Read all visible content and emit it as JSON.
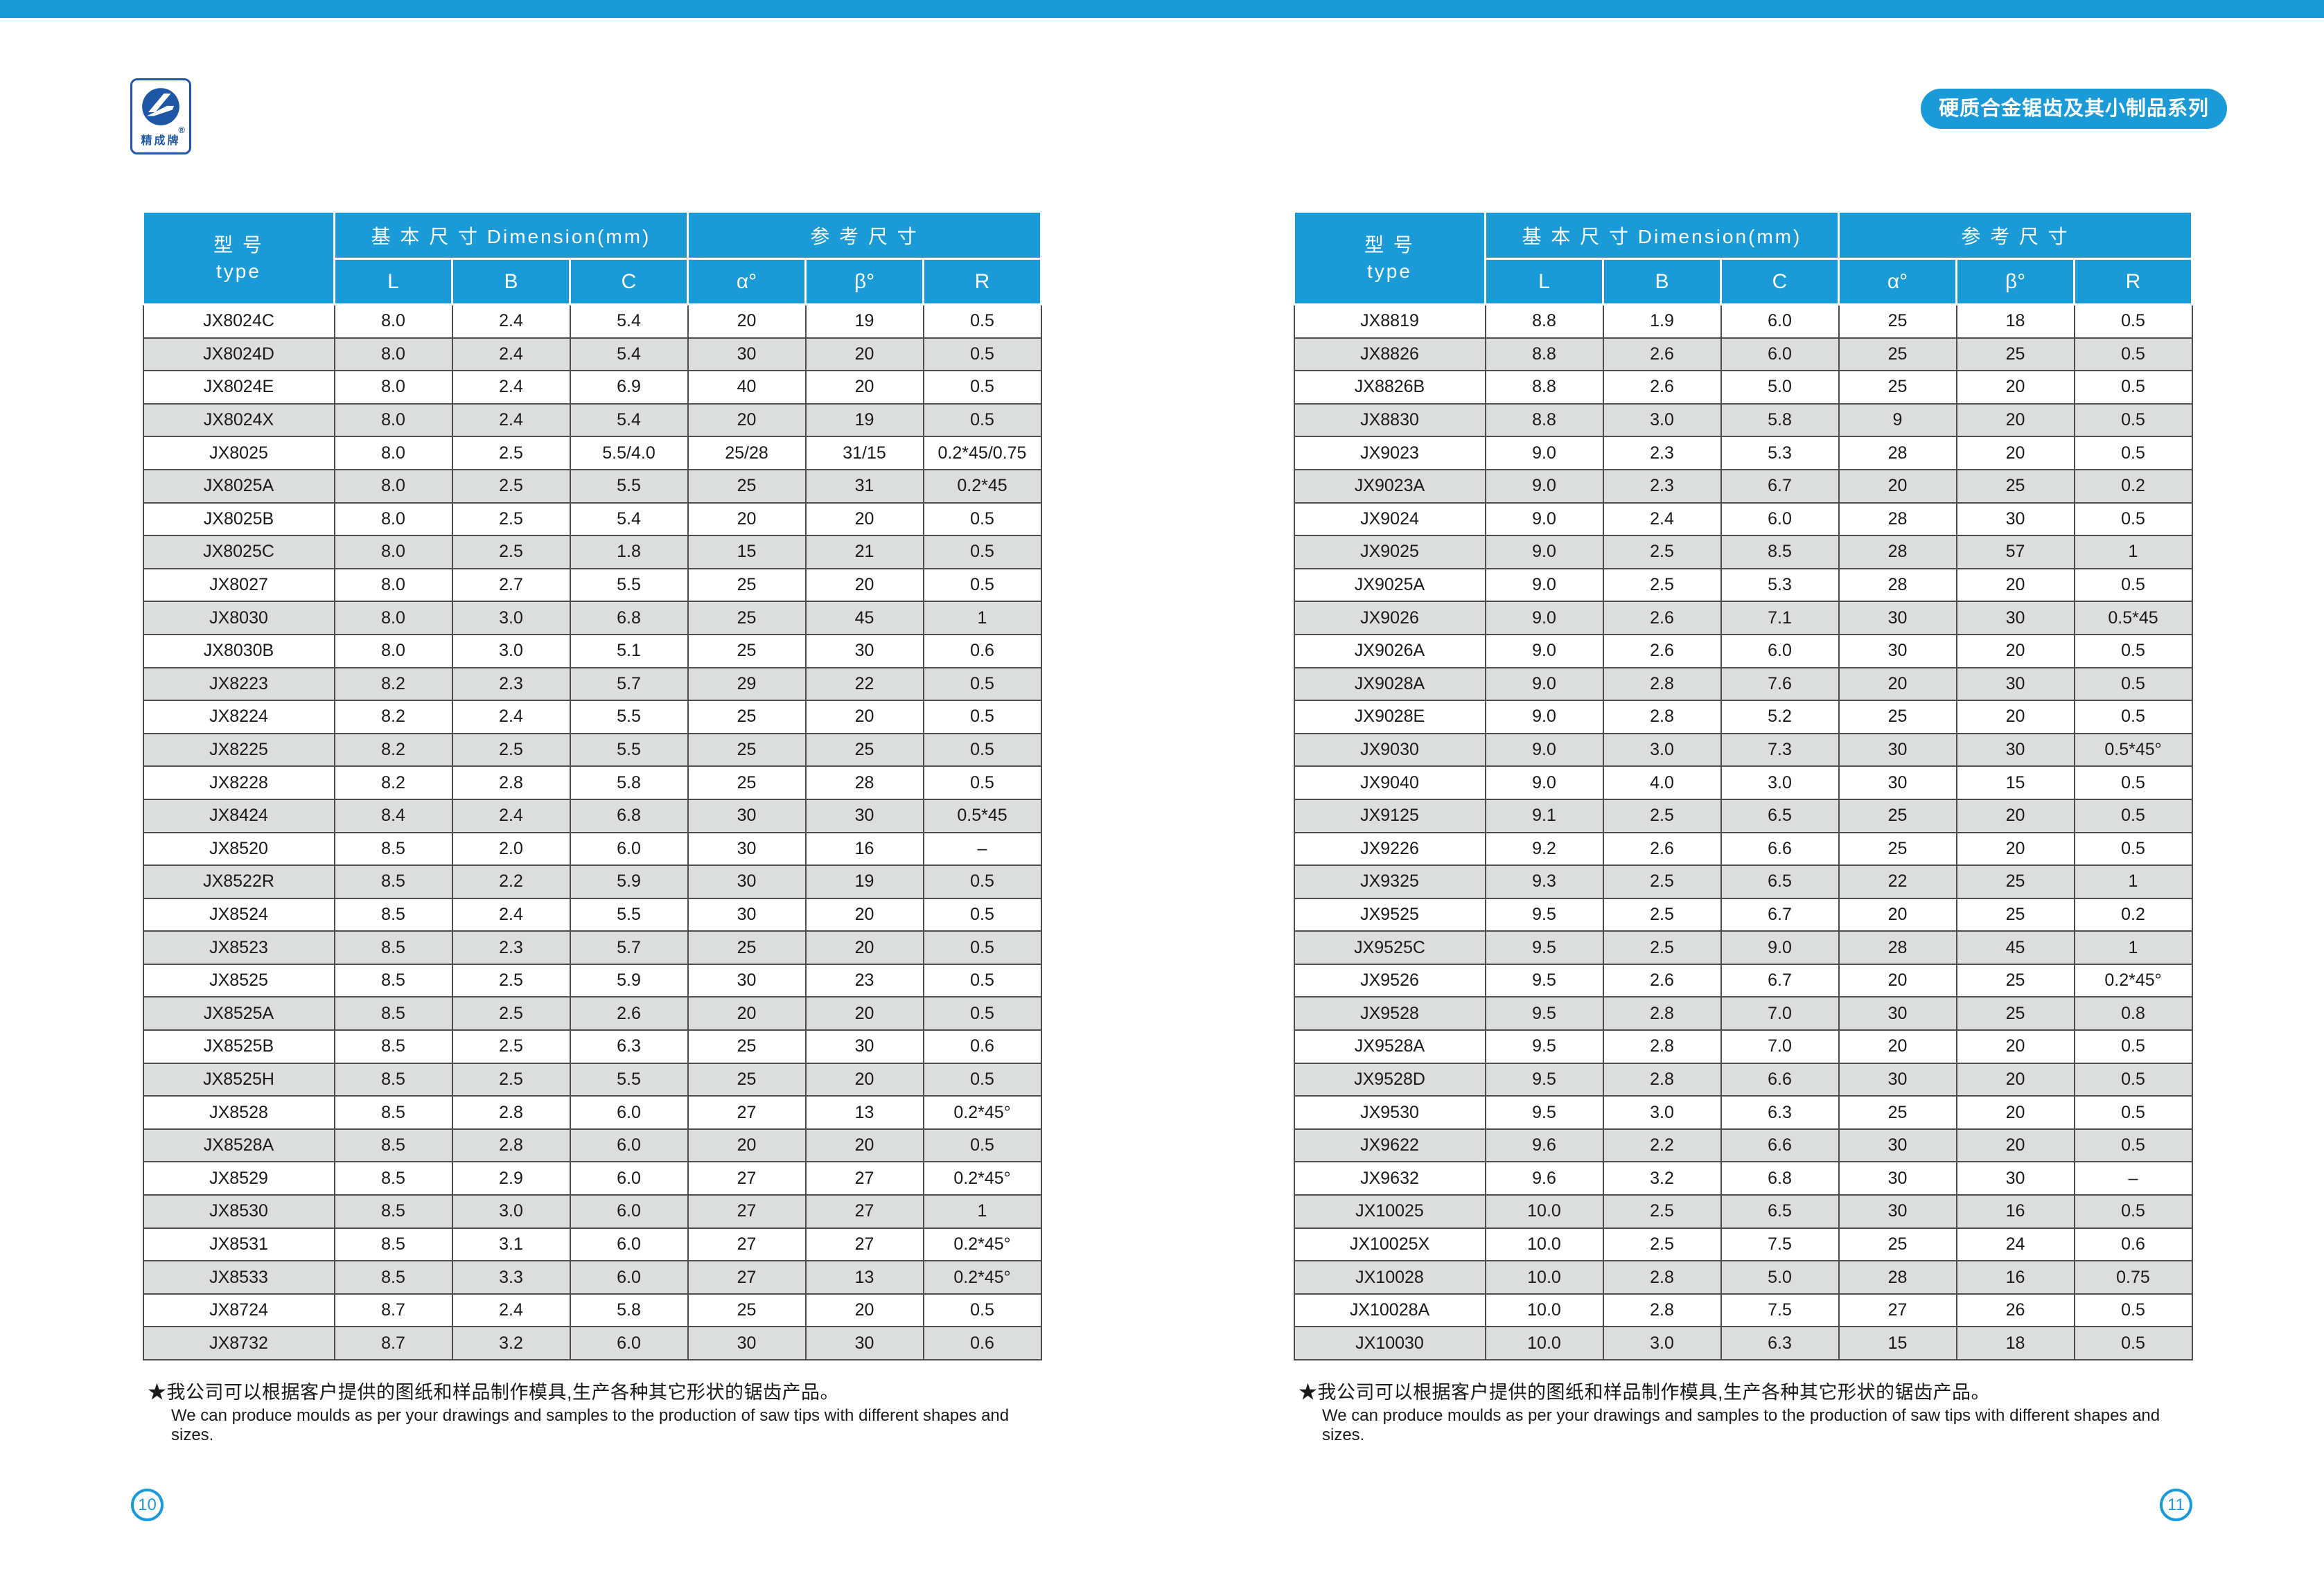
{
  "page": {
    "series_badge": "硬质合金锯齿及其小制品系列",
    "page_number_left": "10",
    "page_number_right": "11"
  },
  "logo": {
    "brand_text": "精成牌",
    "registered_mark": "®"
  },
  "colors": {
    "accent_blue": "#1a9ad6",
    "logo_blue": "#1e57a5",
    "row_alt_gray": "#dcdddd",
    "grid_line": "#4d4d4d"
  },
  "table_header": {
    "type_cn": "型  号",
    "type_en": "type",
    "basic_dim": "基 本 尺 寸 Dimension(mm)",
    "ref_dim": "参  考  尺  寸",
    "cols": [
      "L",
      "B",
      "C",
      "α°",
      "β°",
      "R"
    ]
  },
  "footnote": {
    "cn": "★我公司可以根据客户提供的图纸和样品制作模具,生产各种其它形状的锯齿产品。",
    "en": "We can produce moulds as per your drawings and samples to the production of saw tips with different shapes and sizes."
  },
  "tables": {
    "left": {
      "rows": [
        [
          "JX8024C",
          "8.0",
          "2.4",
          "5.4",
          "20",
          "19",
          "0.5"
        ],
        [
          "JX8024D",
          "8.0",
          "2.4",
          "5.4",
          "30",
          "20",
          "0.5"
        ],
        [
          "JX8024E",
          "8.0",
          "2.4",
          "6.9",
          "40",
          "20",
          "0.5"
        ],
        [
          "JX8024X",
          "8.0",
          "2.4",
          "5.4",
          "20",
          "19",
          "0.5"
        ],
        [
          "JX8025",
          "8.0",
          "2.5",
          "5.5/4.0",
          "25/28",
          "31/15",
          "0.2*45/0.75"
        ],
        [
          "JX8025A",
          "8.0",
          "2.5",
          "5.5",
          "25",
          "31",
          "0.2*45"
        ],
        [
          "JX8025B",
          "8.0",
          "2.5",
          "5.4",
          "20",
          "20",
          "0.5"
        ],
        [
          "JX8025C",
          "8.0",
          "2.5",
          "1.8",
          "15",
          "21",
          "0.5"
        ],
        [
          "JX8027",
          "8.0",
          "2.7",
          "5.5",
          "25",
          "20",
          "0.5"
        ],
        [
          "JX8030",
          "8.0",
          "3.0",
          "6.8",
          "25",
          "45",
          "1"
        ],
        [
          "JX8030B",
          "8.0",
          "3.0",
          "5.1",
          "25",
          "30",
          "0.6"
        ],
        [
          "JX8223",
          "8.2",
          "2.3",
          "5.7",
          "29",
          "22",
          "0.5"
        ],
        [
          "JX8224",
          "8.2",
          "2.4",
          "5.5",
          "25",
          "20",
          "0.5"
        ],
        [
          "JX8225",
          "8.2",
          "2.5",
          "5.5",
          "25",
          "25",
          "0.5"
        ],
        [
          "JX8228",
          "8.2",
          "2.8",
          "5.8",
          "25",
          "28",
          "0.5"
        ],
        [
          "JX8424",
          "8.4",
          "2.4",
          "6.8",
          "30",
          "30",
          "0.5*45"
        ],
        [
          "JX8520",
          "8.5",
          "2.0",
          "6.0",
          "30",
          "16",
          "–"
        ],
        [
          "JX8522R",
          "8.5",
          "2.2",
          "5.9",
          "30",
          "19",
          "0.5"
        ],
        [
          "JX8524",
          "8.5",
          "2.4",
          "5.5",
          "30",
          "20",
          "0.5"
        ],
        [
          "JX8523",
          "8.5",
          "2.3",
          "5.7",
          "25",
          "20",
          "0.5"
        ],
        [
          "JX8525",
          "8.5",
          "2.5",
          "5.9",
          "30",
          "23",
          "0.5"
        ],
        [
          "JX8525A",
          "8.5",
          "2.5",
          "2.6",
          "20",
          "20",
          "0.5"
        ],
        [
          "JX8525B",
          "8.5",
          "2.5",
          "6.3",
          "25",
          "30",
          "0.6"
        ],
        [
          "JX8525H",
          "8.5",
          "2.5",
          "5.5",
          "25",
          "20",
          "0.5"
        ],
        [
          "JX8528",
          "8.5",
          "2.8",
          "6.0",
          "27",
          "13",
          "0.2*45°"
        ],
        [
          "JX8528A",
          "8.5",
          "2.8",
          "6.0",
          "20",
          "20",
          "0.5"
        ],
        [
          "JX8529",
          "8.5",
          "2.9",
          "6.0",
          "27",
          "27",
          "0.2*45°"
        ],
        [
          "JX8530",
          "8.5",
          "3.0",
          "6.0",
          "27",
          "27",
          "1"
        ],
        [
          "JX8531",
          "8.5",
          "3.1",
          "6.0",
          "27",
          "27",
          "0.2*45°"
        ],
        [
          "JX8533",
          "8.5",
          "3.3",
          "6.0",
          "27",
          "13",
          "0.2*45°"
        ],
        [
          "JX8724",
          "8.7",
          "2.4",
          "5.8",
          "25",
          "20",
          "0.5"
        ],
        [
          "JX8732",
          "8.7",
          "3.2",
          "6.0",
          "30",
          "30",
          "0.6"
        ]
      ]
    },
    "right": {
      "rows": [
        [
          "JX8819",
          "8.8",
          "1.9",
          "6.0",
          "25",
          "18",
          "0.5"
        ],
        [
          "JX8826",
          "8.8",
          "2.6",
          "6.0",
          "25",
          "25",
          "0.5"
        ],
        [
          "JX8826B",
          "8.8",
          "2.6",
          "5.0",
          "25",
          "20",
          "0.5"
        ],
        [
          "JX8830",
          "8.8",
          "3.0",
          "5.8",
          "9",
          "20",
          "0.5"
        ],
        [
          "JX9023",
          "9.0",
          "2.3",
          "5.3",
          "28",
          "20",
          "0.5"
        ],
        [
          "JX9023A",
          "9.0",
          "2.3",
          "6.7",
          "20",
          "25",
          "0.2"
        ],
        [
          "JX9024",
          "9.0",
          "2.4",
          "6.0",
          "28",
          "30",
          "0.5"
        ],
        [
          "JX9025",
          "9.0",
          "2.5",
          "8.5",
          "28",
          "57",
          "1"
        ],
        [
          "JX9025A",
          "9.0",
          "2.5",
          "5.3",
          "28",
          "20",
          "0.5"
        ],
        [
          "JX9026",
          "9.0",
          "2.6",
          "7.1",
          "30",
          "30",
          "0.5*45"
        ],
        [
          "JX9026A",
          "9.0",
          "2.6",
          "6.0",
          "30",
          "20",
          "0.5"
        ],
        [
          "JX9028A",
          "9.0",
          "2.8",
          "7.6",
          "20",
          "30",
          "0.5"
        ],
        [
          "JX9028E",
          "9.0",
          "2.8",
          "5.2",
          "25",
          "20",
          "0.5"
        ],
        [
          "JX9030",
          "9.0",
          "3.0",
          "7.3",
          "30",
          "30",
          "0.5*45°"
        ],
        [
          "JX9040",
          "9.0",
          "4.0",
          "3.0",
          "30",
          "15",
          "0.5"
        ],
        [
          "JX9125",
          "9.1",
          "2.5",
          "6.5",
          "25",
          "20",
          "0.5"
        ],
        [
          "JX9226",
          "9.2",
          "2.6",
          "6.6",
          "25",
          "20",
          "0.5"
        ],
        [
          "JX9325",
          "9.3",
          "2.5",
          "6.5",
          "22",
          "25",
          "1"
        ],
        [
          "JX9525",
          "9.5",
          "2.5",
          "6.7",
          "20",
          "25",
          "0.2"
        ],
        [
          "JX9525C",
          "9.5",
          "2.5",
          "9.0",
          "28",
          "45",
          "1"
        ],
        [
          "JX9526",
          "9.5",
          "2.6",
          "6.7",
          "20",
          "25",
          "0.2*45°"
        ],
        [
          "JX9528",
          "9.5",
          "2.8",
          "7.0",
          "30",
          "25",
          "0.8"
        ],
        [
          "JX9528A",
          "9.5",
          "2.8",
          "7.0",
          "20",
          "20",
          "0.5"
        ],
        [
          "JX9528D",
          "9.5",
          "2.8",
          "6.6",
          "30",
          "20",
          "0.5"
        ],
        [
          "JX9530",
          "9.5",
          "3.0",
          "6.3",
          "25",
          "20",
          "0.5"
        ],
        [
          "JX9622",
          "9.6",
          "2.2",
          "6.6",
          "30",
          "20",
          "0.5"
        ],
        [
          "JX9632",
          "9.6",
          "3.2",
          "6.8",
          "30",
          "30",
          "–"
        ],
        [
          "JX10025",
          "10.0",
          "2.5",
          "6.5",
          "30",
          "16",
          "0.5"
        ],
        [
          "JX10025X",
          "10.0",
          "2.5",
          "7.5",
          "25",
          "24",
          "0.6"
        ],
        [
          "JX10028",
          "10.0",
          "2.8",
          "5.0",
          "28",
          "16",
          "0.75"
        ],
        [
          "JX10028A",
          "10.0",
          "2.8",
          "7.5",
          "27",
          "26",
          "0.5"
        ],
        [
          "JX10030",
          "10.0",
          "3.0",
          "6.3",
          "15",
          "18",
          "0.5"
        ]
      ]
    }
  }
}
